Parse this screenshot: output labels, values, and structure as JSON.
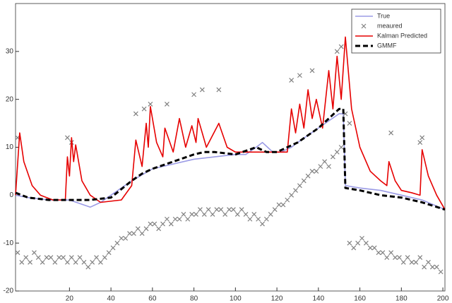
{
  "chart_data": {
    "type": "line",
    "xlim": [
      -6,
      201
    ],
    "ylim": [
      -20,
      40
    ],
    "xticks": [
      20,
      40,
      60,
      80,
      100,
      120,
      140,
      160,
      180,
      200
    ],
    "yticks": [
      -20,
      -10,
      0,
      10,
      20,
      30
    ],
    "legend": "upper-right",
    "series": [
      {
        "name": "True",
        "color": "#9b9be6",
        "line": "solid",
        "x": [
          -6,
          0,
          10,
          20,
          30,
          35,
          40,
          50,
          60,
          70,
          80,
          90,
          100,
          105,
          110,
          113,
          118,
          122,
          127,
          130,
          140,
          150,
          152,
          153,
          160,
          170,
          180,
          190,
          201
        ],
        "values": [
          0,
          -0.5,
          -1,
          -1,
          -2.5,
          -1.5,
          0,
          3,
          5.5,
          6.5,
          7.5,
          8,
          8.5,
          8.5,
          10,
          11,
          9,
          9,
          10,
          11,
          14,
          17,
          17,
          2,
          1.5,
          1,
          0,
          -1,
          -3
        ]
      },
      {
        "name": "meaured",
        "color": "#808080",
        "marker": "x",
        "x": [
          -5,
          -3,
          -1,
          1,
          3,
          5,
          7,
          9,
          11,
          13,
          15,
          17,
          19,
          21,
          23,
          25,
          27,
          29,
          31,
          33,
          35,
          37,
          39,
          41,
          43,
          45,
          47,
          49,
          51,
          53,
          55,
          57,
          59,
          61,
          63,
          65,
          67,
          69,
          71,
          73,
          75,
          77,
          79,
          81,
          83,
          85,
          87,
          89,
          91,
          93,
          95,
          97,
          99,
          101,
          103,
          105,
          107,
          109,
          111,
          113,
          115,
          117,
          119,
          121,
          123,
          125,
          127,
          129,
          131,
          133,
          135,
          137,
          139,
          141,
          143,
          145,
          147,
          149,
          151,
          155,
          157,
          159,
          161,
          163,
          165,
          167,
          169,
          171,
          173,
          175,
          177,
          179,
          181,
          183,
          185,
          187,
          189,
          191,
          193,
          195,
          197,
          199,
          -5,
          19,
          21,
          52,
          56,
          59,
          67,
          80,
          84,
          92,
          127,
          131,
          137,
          149,
          151,
          153,
          155,
          175,
          189,
          190
        ],
        "values": [
          -12,
          -14,
          -13,
          -14,
          -12,
          -13,
          -14,
          -13,
          -13,
          -14,
          -13,
          -13,
          -14,
          -13,
          -14,
          -13,
          -14,
          -15,
          -14,
          -13,
          -14,
          -13,
          -12,
          -11,
          -10,
          -9,
          -9,
          -8,
          -8,
          -7,
          -8,
          -7,
          -6,
          -6,
          -7,
          -6,
          -5,
          -6,
          -5,
          -5,
          -4,
          -5,
          -4,
          -4,
          -3,
          -4,
          -3,
          -4,
          -3,
          -3,
          -4,
          -3,
          -3,
          -4,
          -3,
          -4,
          -5,
          -4,
          -5,
          -6,
          -5,
          -4,
          -3,
          -2,
          -2,
          -1,
          0,
          1,
          2,
          3,
          4,
          5,
          5,
          6,
          7,
          6,
          8,
          9,
          10,
          -10,
          -11,
          -10,
          -9,
          -10,
          -11,
          -11,
          -12,
          -12,
          -13,
          -12,
          -13,
          -13,
          -14,
          -13,
          -14,
          -14,
          -13,
          -15,
          -14,
          -15,
          -15,
          -16,
          12,
          12,
          11,
          17,
          18,
          19,
          19,
          21,
          22,
          22,
          24,
          25,
          26,
          30,
          31,
          17,
          15,
          13,
          11,
          12
        ]
      },
      {
        "name": "Kalman Predicted",
        "color": "#e60000",
        "line": "solid",
        "x": [
          -6,
          -4,
          -2,
          2,
          6,
          12,
          18,
          19,
          20,
          21,
          22,
          23,
          26,
          30,
          35,
          45,
          50,
          52,
          55,
          57,
          58,
          59,
          62,
          65,
          66,
          70,
          73,
          76,
          79,
          81,
          82,
          86,
          92,
          96,
          100,
          110,
          120,
          125,
          127,
          129,
          131,
          133,
          135,
          137,
          139,
          142,
          145,
          147,
          149,
          151,
          153,
          156,
          160,
          165,
          170,
          173,
          174,
          177,
          180,
          185,
          189,
          190,
          193,
          197,
          201
        ],
        "values": [
          0,
          13,
          7,
          2,
          0,
          -1,
          -1,
          8,
          4,
          12,
          7,
          10.5,
          3,
          0,
          -1.5,
          -1,
          2,
          11.5,
          6,
          15,
          10,
          18.5,
          11,
          8,
          14,
          9,
          16,
          10,
          14.5,
          11,
          16,
          10,
          15,
          10,
          9,
          9,
          9,
          9,
          18,
          13,
          19,
          14,
          22,
          16,
          20,
          14,
          26,
          18,
          29,
          20,
          33,
          18,
          10,
          5,
          3,
          2,
          7,
          3,
          1,
          0.5,
          0,
          9.5,
          4,
          0,
          -3
        ]
      },
      {
        "name": "GMMF",
        "color": "#000000",
        "line": "dashed",
        "x": [
          -6,
          0,
          10,
          20,
          30,
          40,
          50,
          55,
          60,
          70,
          80,
          85,
          90,
          100,
          110,
          115,
          120,
          130,
          140,
          150,
          152,
          153,
          160,
          170,
          180,
          190,
          201
        ],
        "values": [
          0.5,
          -0.5,
          -1,
          -1,
          -1,
          -0.5,
          3,
          4.5,
          5.5,
          7,
          8.5,
          9,
          9,
          8.5,
          10,
          9,
          9,
          11,
          14,
          18,
          18,
          1.5,
          1,
          0,
          -0.5,
          -1.5,
          -3
        ]
      }
    ]
  }
}
